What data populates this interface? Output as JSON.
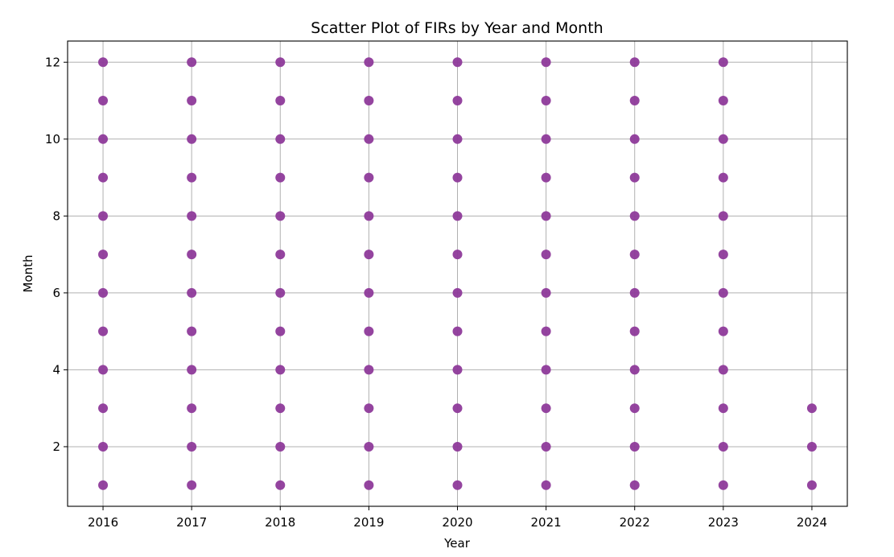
{
  "chart_data": {
    "type": "scatter",
    "title": "Scatter Plot of FIRs by Year and Month",
    "xlabel": "Year",
    "ylabel": "Month",
    "xlim": [
      2015.6,
      2024.4
    ],
    "ylim": [
      0.45,
      12.55
    ],
    "x_ticks": [
      2016,
      2017,
      2018,
      2019,
      2020,
      2021,
      2022,
      2023,
      2024
    ],
    "y_ticks": [
      2,
      4,
      6,
      8,
      10,
      12
    ],
    "grid": true,
    "marker_color": "#8E3A9A",
    "points": [
      [
        2016,
        1
      ],
      [
        2016,
        2
      ],
      [
        2016,
        3
      ],
      [
        2016,
        4
      ],
      [
        2016,
        5
      ],
      [
        2016,
        6
      ],
      [
        2016,
        7
      ],
      [
        2016,
        8
      ],
      [
        2016,
        9
      ],
      [
        2016,
        10
      ],
      [
        2016,
        11
      ],
      [
        2016,
        12
      ],
      [
        2017,
        1
      ],
      [
        2017,
        2
      ],
      [
        2017,
        3
      ],
      [
        2017,
        4
      ],
      [
        2017,
        5
      ],
      [
        2017,
        6
      ],
      [
        2017,
        7
      ],
      [
        2017,
        8
      ],
      [
        2017,
        9
      ],
      [
        2017,
        10
      ],
      [
        2017,
        11
      ],
      [
        2017,
        12
      ],
      [
        2018,
        1
      ],
      [
        2018,
        2
      ],
      [
        2018,
        3
      ],
      [
        2018,
        4
      ],
      [
        2018,
        5
      ],
      [
        2018,
        6
      ],
      [
        2018,
        7
      ],
      [
        2018,
        8
      ],
      [
        2018,
        9
      ],
      [
        2018,
        10
      ],
      [
        2018,
        11
      ],
      [
        2018,
        12
      ],
      [
        2019,
        1
      ],
      [
        2019,
        2
      ],
      [
        2019,
        3
      ],
      [
        2019,
        4
      ],
      [
        2019,
        5
      ],
      [
        2019,
        6
      ],
      [
        2019,
        7
      ],
      [
        2019,
        8
      ],
      [
        2019,
        9
      ],
      [
        2019,
        10
      ],
      [
        2019,
        11
      ],
      [
        2019,
        12
      ],
      [
        2020,
        1
      ],
      [
        2020,
        2
      ],
      [
        2020,
        3
      ],
      [
        2020,
        4
      ],
      [
        2020,
        5
      ],
      [
        2020,
        6
      ],
      [
        2020,
        7
      ],
      [
        2020,
        8
      ],
      [
        2020,
        9
      ],
      [
        2020,
        10
      ],
      [
        2020,
        11
      ],
      [
        2020,
        12
      ],
      [
        2021,
        1
      ],
      [
        2021,
        2
      ],
      [
        2021,
        3
      ],
      [
        2021,
        4
      ],
      [
        2021,
        5
      ],
      [
        2021,
        6
      ],
      [
        2021,
        7
      ],
      [
        2021,
        8
      ],
      [
        2021,
        9
      ],
      [
        2021,
        10
      ],
      [
        2021,
        11
      ],
      [
        2021,
        12
      ],
      [
        2022,
        1
      ],
      [
        2022,
        2
      ],
      [
        2022,
        3
      ],
      [
        2022,
        4
      ],
      [
        2022,
        5
      ],
      [
        2022,
        6
      ],
      [
        2022,
        7
      ],
      [
        2022,
        8
      ],
      [
        2022,
        9
      ],
      [
        2022,
        10
      ],
      [
        2022,
        11
      ],
      [
        2022,
        12
      ],
      [
        2023,
        1
      ],
      [
        2023,
        2
      ],
      [
        2023,
        3
      ],
      [
        2023,
        4
      ],
      [
        2023,
        5
      ],
      [
        2023,
        6
      ],
      [
        2023,
        7
      ],
      [
        2023,
        8
      ],
      [
        2023,
        9
      ],
      [
        2023,
        10
      ],
      [
        2023,
        11
      ],
      [
        2023,
        12
      ],
      [
        2024,
        1
      ],
      [
        2024,
        2
      ],
      [
        2024,
        3
      ]
    ]
  }
}
